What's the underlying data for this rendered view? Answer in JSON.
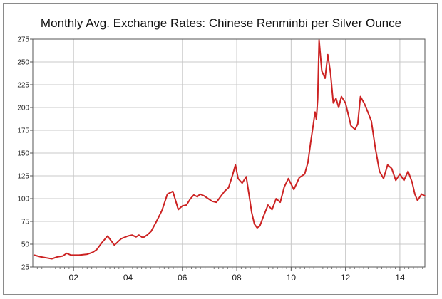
{
  "chart_data": {
    "type": "line",
    "title": "Monthly Avg. Exchange Rates: Chinese Renminbi per Silver Ounce",
    "xlabel": "",
    "ylabel": "",
    "xlim": [
      2000.5,
      2014.92
    ],
    "ylim": [
      25,
      275
    ],
    "grid": true,
    "y_ticks": [
      25,
      50,
      75,
      100,
      125,
      150,
      175,
      200,
      225,
      250,
      275
    ],
    "x_ticks": [
      {
        "value": 2002,
        "label": "02"
      },
      {
        "value": 2004,
        "label": "04"
      },
      {
        "value": 2006,
        "label": "06"
      },
      {
        "value": 2008,
        "label": "08"
      },
      {
        "value": 2010,
        "label": "10"
      },
      {
        "value": 2012,
        "label": "12"
      },
      {
        "value": 2014,
        "label": "14"
      }
    ],
    "x_minor_ticks_per_year": 6,
    "line_color": "#cc2222",
    "series": [
      {
        "x": [
          2000.55,
          2000.8,
          2001.0,
          2001.2,
          2001.4,
          2001.6,
          2001.75,
          2001.9,
          2002.2,
          2002.5,
          2002.7,
          2002.85,
          2003.05,
          2003.25,
          2003.5,
          2003.75,
          2004.0,
          2004.15,
          2004.3,
          2004.4,
          2004.55,
          2004.7,
          2004.85,
          2005.05,
          2005.25,
          2005.45,
          2005.65,
          2005.85,
          2006.0,
          2006.15,
          2006.3,
          2006.42,
          2006.55,
          2006.65,
          2006.8,
          2006.95,
          2007.1,
          2007.25,
          2007.4,
          2007.55,
          2007.7,
          2007.85,
          2007.95,
          2008.05,
          2008.2,
          2008.35,
          2008.45,
          2008.55,
          2008.65,
          2008.75,
          2008.85,
          2008.95,
          2009.15,
          2009.3,
          2009.45,
          2009.6,
          2009.75,
          2009.9,
          2010.1,
          2010.3,
          2010.5,
          2010.62,
          2010.72,
          2010.82,
          2010.88,
          2010.93,
          2010.98,
          2011.03,
          2011.13,
          2011.25,
          2011.35,
          2011.45,
          2011.55,
          2011.65,
          2011.75,
          2011.85,
          2012.0,
          2012.2,
          2012.35,
          2012.45,
          2012.55,
          2012.7,
          2012.85,
          2012.95,
          2013.1,
          2013.25,
          2013.4,
          2013.55,
          2013.7,
          2013.85,
          2014.0,
          2014.15,
          2014.3,
          2014.45,
          2014.55,
          2014.65,
          2014.8,
          2014.92
        ],
        "values": [
          38,
          36,
          35,
          34,
          36,
          37,
          40,
          38,
          38,
          39,
          41,
          44,
          52,
          59,
          49,
          56,
          59,
          60,
          58,
          60,
          57,
          60,
          64,
          75,
          87,
          105,
          108,
          88,
          92,
          93,
          100,
          104,
          102,
          105,
          103,
          100,
          97,
          96,
          102,
          108,
          112,
          126,
          137,
          122,
          117,
          124,
          105,
          85,
          72,
          68,
          70,
          78,
          93,
          88,
          100,
          96,
          113,
          122,
          110,
          123,
          127,
          140,
          162,
          182,
          195,
          187,
          210,
          274,
          240,
          232,
          258,
          238,
          205,
          210,
          200,
          212,
          205,
          180,
          176,
          182,
          212,
          204,
          193,
          185,
          155,
          130,
          122,
          137,
          133,
          120,
          127,
          120,
          130,
          118,
          105,
          98,
          105,
          103
        ]
      }
    ]
  }
}
